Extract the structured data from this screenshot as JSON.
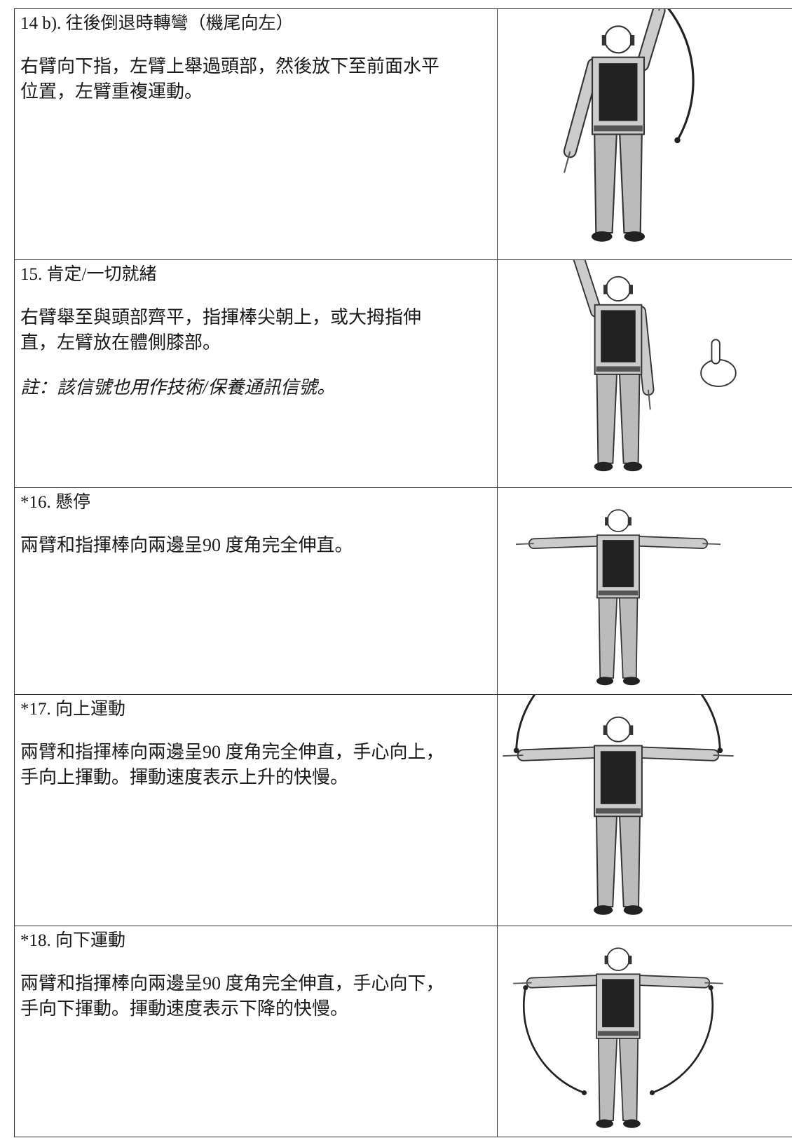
{
  "rows": [
    {
      "title": "14 b). 往後倒退時轉彎（機尾向左）",
      "lines": [
        "右臂向下指，左臂上舉過頭部，然後放下至前面水平",
        "位置，左臂重複運動。"
      ]
    },
    {
      "title": "15. 肯定/一切就緒",
      "lines": [
        "右臂舉至與頭部齊平，指揮棒尖朝上，或大拇指伸",
        "直，左臂放在體側膝部。"
      ],
      "note": "註：該信號也用作技術/保養通訊信號。"
    },
    {
      "title": "*16. 懸停",
      "lines": [
        "兩臂和指揮棒向兩邊呈90  度角完全伸直。"
      ]
    },
    {
      "title": "*17. 向上運動",
      "lines": [
        "兩臂和指揮棒向兩邊呈90  度角完全伸直，手心向上，",
        "手向上揮動。揮動速度表示上升的快慢。"
      ]
    },
    {
      "title": "*18. 向下運動",
      "lines": [
        "兩臂和指揮棒向兩邊呈90  度角完全伸直，手心向下，",
        "手向下揮動。揮動速度表示下降的快慢。"
      ]
    }
  ]
}
